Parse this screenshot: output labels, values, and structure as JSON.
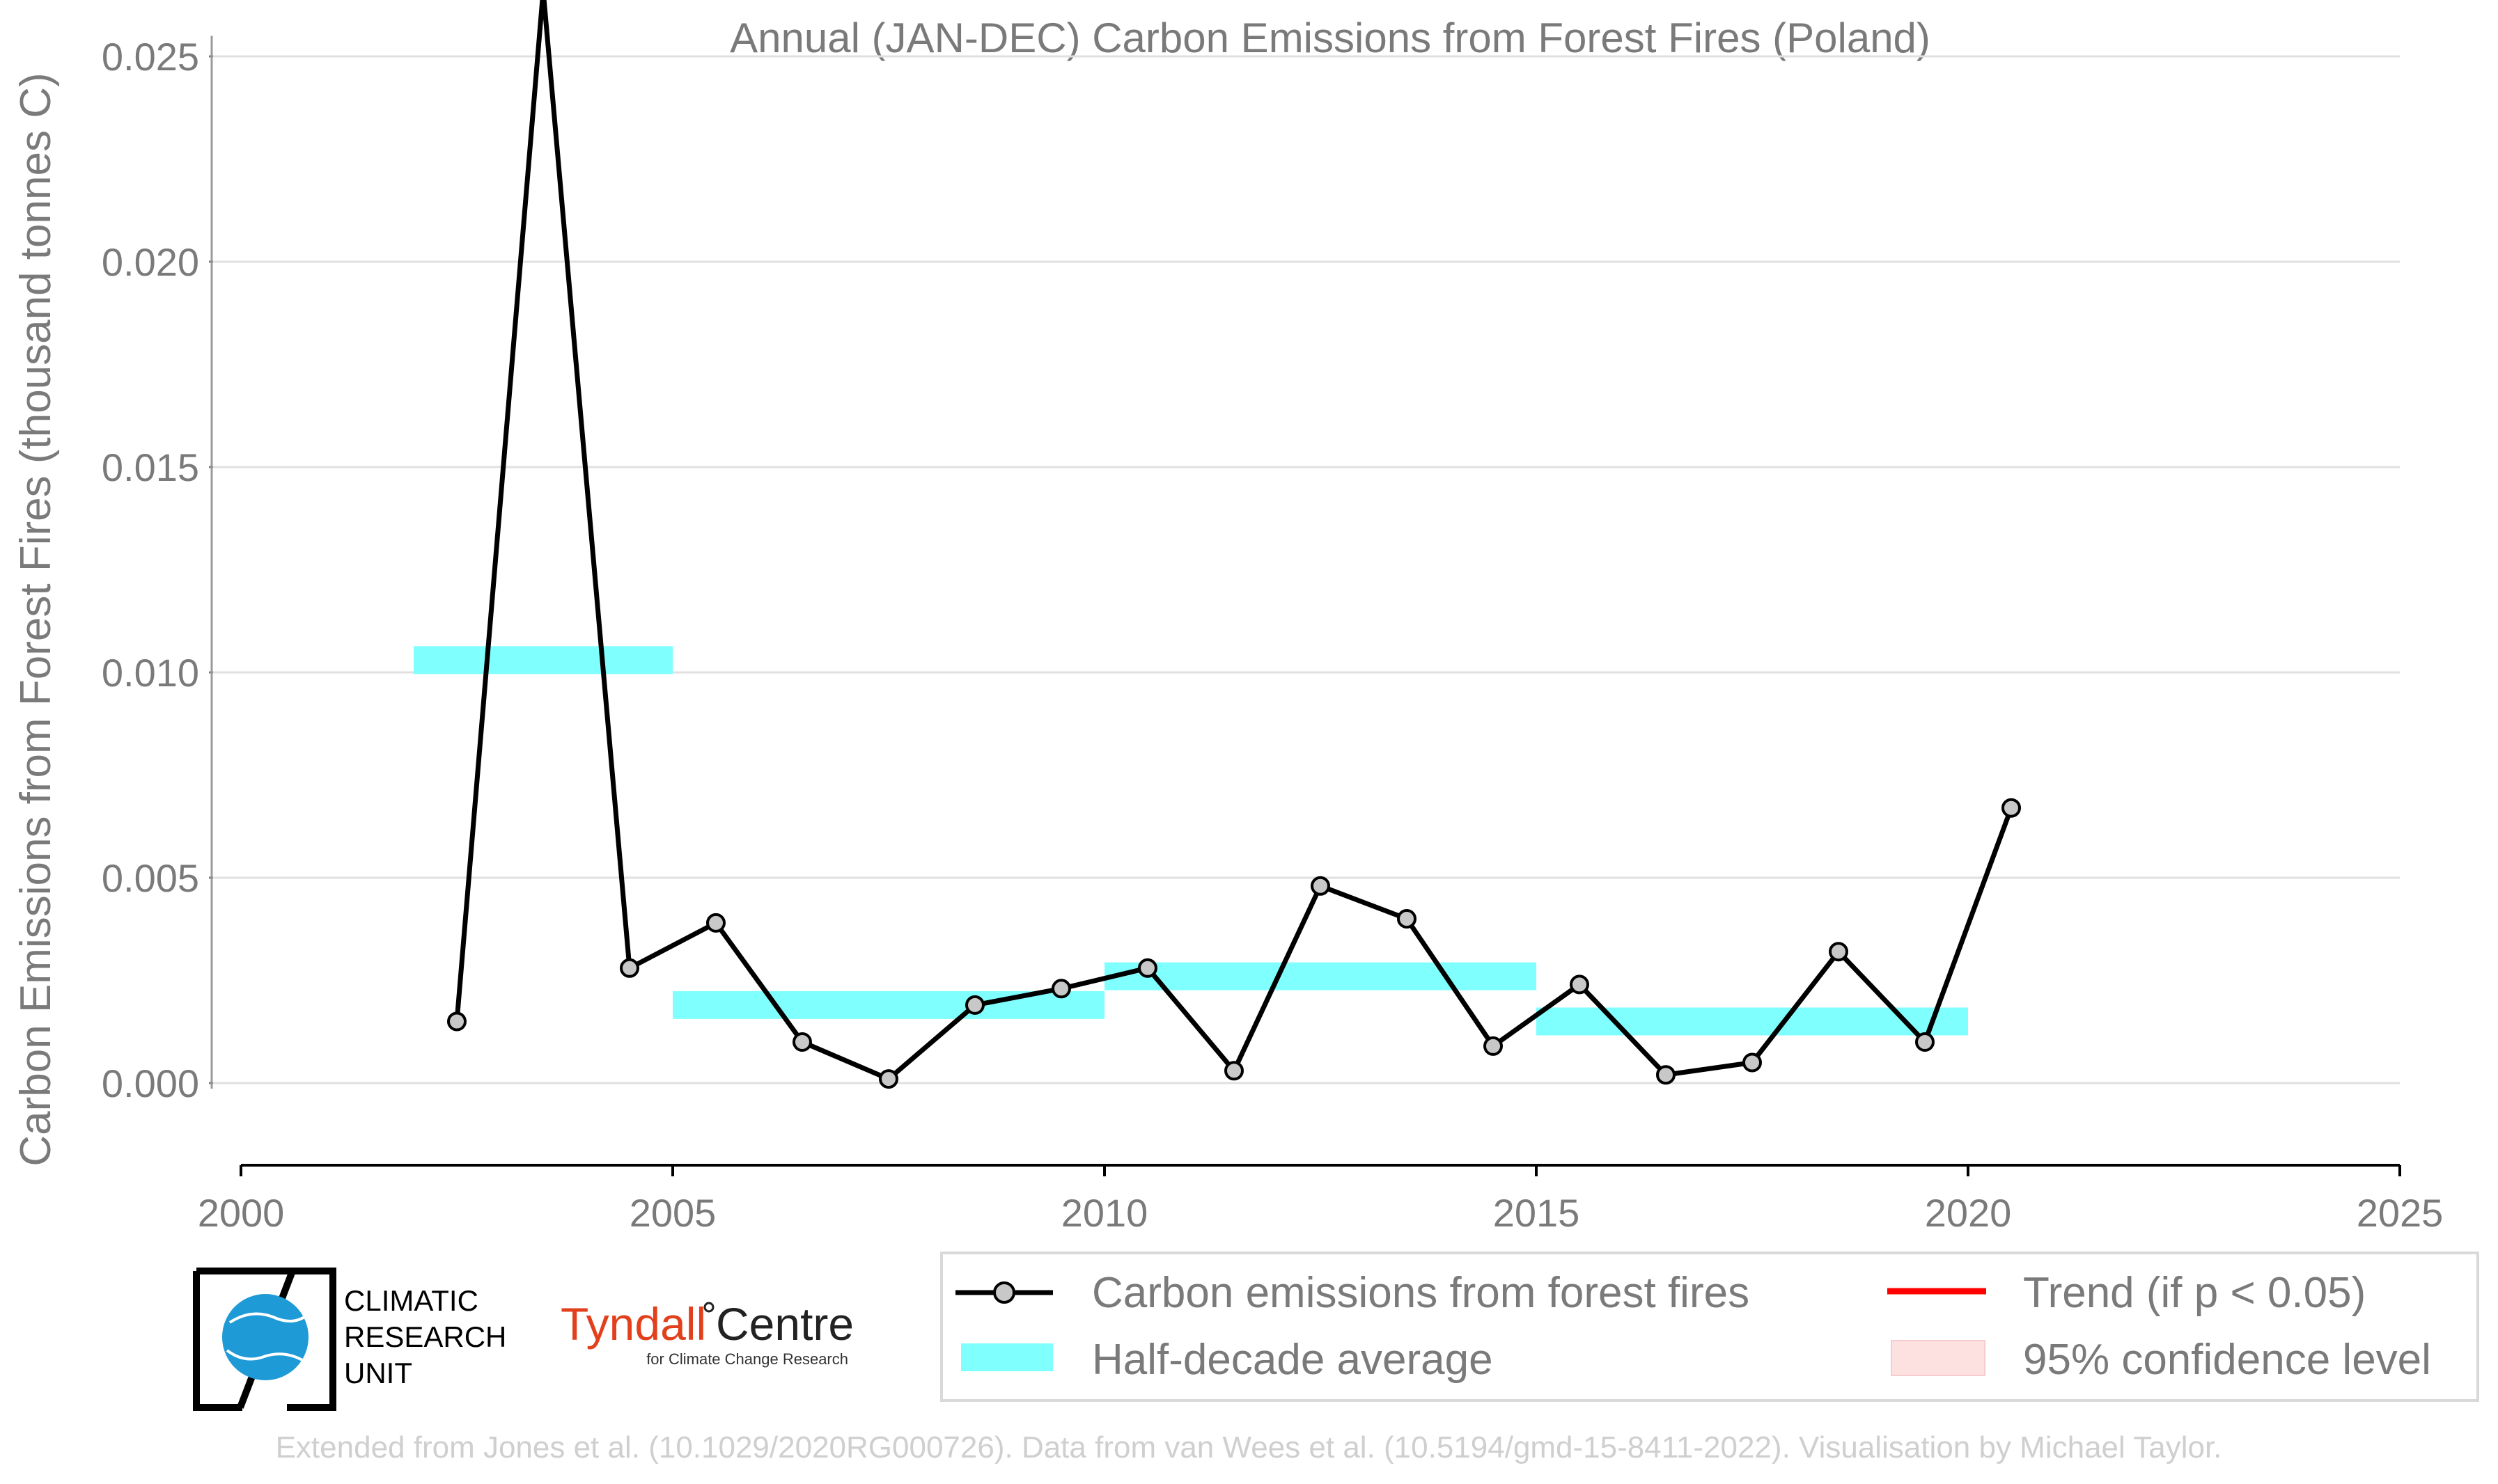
{
  "title": "Annual (JAN-DEC) Carbon Emissions from Forest Fires (Poland)",
  "colors": {
    "line": "#000000",
    "marker_fill": "#c8c8c8",
    "half_decade": "#80ffff",
    "trend": "#ff0000",
    "ci": "#fde0e0",
    "grid": "#e0e0e0",
    "text": "#7a7a7a",
    "footer": "#cfcfcf"
  },
  "chart_data": {
    "type": "line",
    "title": "Annual (JAN-DEC) Carbon Emissions from Forest Fires (Poland)",
    "ylabel": "Carbon Emissions from Forest Fires (thousand tonnes C)",
    "xlabel": "",
    "xlim": [
      2000,
      2025
    ],
    "ylim": [
      -0.002,
      0.026
    ],
    "xticks": [
      "2000",
      "2005",
      "2010",
      "2015",
      "2020",
      "2025"
    ],
    "xtick_values": [
      2000,
      2005,
      2010,
      2015,
      2020,
      2025
    ],
    "yticks": [
      "0.000",
      "0.005",
      "0.010",
      "0.015",
      "0.020",
      "0.025"
    ],
    "ytick_values": [
      0,
      0.005,
      0.01,
      0.015,
      0.02,
      0.025
    ],
    "grid": "horizontal",
    "series": [
      {
        "name": "Carbon emissions from forest fires",
        "x": [
          2002.5,
          2003.5,
          2004.5,
          2005.5,
          2006.5,
          2007.5,
          2008.5,
          2009.5,
          2010.5,
          2011.5,
          2012.5,
          2013.5,
          2014.5,
          2015.5,
          2016.5,
          2017.5,
          2018.5,
          2019.5,
          2020.5
        ],
        "values": [
          0.0015,
          0.0266,
          0.0028,
          0.0039,
          0.001,
          0.0001,
          0.0019,
          0.0023,
          0.0028,
          0.0003,
          0.0048,
          0.004,
          0.0009,
          0.0024,
          0.0002,
          0.0005,
          0.0032,
          0.001,
          0.0067
        ]
      }
    ],
    "half_decade_average": {
      "name": "Half-decade average",
      "segments": [
        {
          "x0": 2002,
          "x1": 2005,
          "value": 0.0103
        },
        {
          "x0": 2005,
          "x1": 2010,
          "value": 0.0019
        },
        {
          "x0": 2010,
          "x1": 2015,
          "value": 0.0026
        },
        {
          "x0": 2015,
          "x1": 2020,
          "value": 0.0015
        }
      ]
    },
    "legend": {
      "placement": "bottom-right",
      "entries": [
        "Carbon emissions from forest fires",
        "Trend (if p < 0.05)",
        "Half-decade average",
        "95% confidence level"
      ]
    }
  },
  "logos": {
    "cru": [
      "CLIMATIC",
      "RESEARCH",
      "UNIT"
    ],
    "tyndall_main_a": "Tyndall",
    "tyndall_main_b": "Centre",
    "tyndall_sub": "for Climate Change Research"
  },
  "footer": "Extended from Jones et al. (10.1029/2020RG000726). Data from van Wees et al. (10.5194/gmd-15-8411-2022). Visualisation by Michael Taylor."
}
